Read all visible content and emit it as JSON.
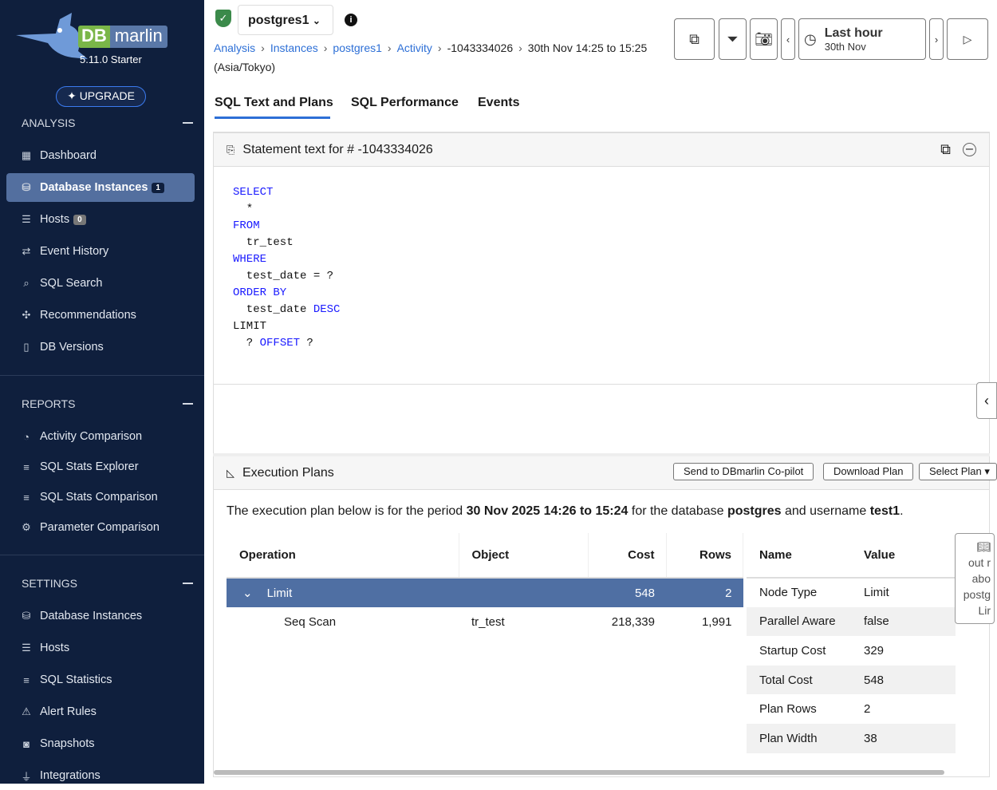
{
  "sidebar": {
    "brand_db": "DB",
    "brand_marlin": "marlin",
    "version": "5.11.0 Starter",
    "upgrade": "UPGRADE",
    "analysis": {
      "title": "ANALYSIS",
      "items": [
        {
          "label": "Dashboard",
          "icon": "grid-icon"
        },
        {
          "label": "Database Instances",
          "icon": "database-icon",
          "badge": "1",
          "active": true
        },
        {
          "label": "Hosts",
          "icon": "server-icon",
          "badge": "0"
        },
        {
          "label": "Event History",
          "icon": "arrows-icon"
        },
        {
          "label": "SQL Search",
          "icon": "search-icon"
        },
        {
          "label": "Recommendations",
          "icon": "puzzle-icon"
        },
        {
          "label": "DB Versions",
          "icon": "file-icon"
        }
      ]
    },
    "reports": {
      "title": "REPORTS",
      "items": [
        {
          "label": "Activity Comparison",
          "icon": "timer-icon"
        },
        {
          "label": "SQL Stats Explorer",
          "icon": "chart-icon"
        },
        {
          "label": "SQL Stats Comparison",
          "icon": "chart-icon"
        },
        {
          "label": "Parameter Comparison",
          "icon": "gear-icon"
        }
      ]
    },
    "settings": {
      "title": "SETTINGS",
      "items": [
        {
          "label": "Database Instances",
          "icon": "database-icon"
        },
        {
          "label": "Hosts",
          "icon": "server-icon"
        },
        {
          "label": "SQL Statistics",
          "icon": "chart-icon"
        },
        {
          "label": "Alert Rules",
          "icon": "warning-icon"
        },
        {
          "label": "Snapshots",
          "icon": "camera-icon"
        },
        {
          "label": "Integrations",
          "icon": "plug-icon"
        }
      ]
    }
  },
  "header": {
    "instance": "postgres1",
    "breadcrumb": [
      "Analysis",
      "Instances",
      "postgres1",
      "Activity"
    ],
    "crumb_id": "-1043334026",
    "crumb_range": "30th Nov 14:25 to 15:25 (Asia/Tokyo)",
    "time_label": "Last hour",
    "time_date": "30th Nov"
  },
  "tabs": [
    "SQL Text and Plans",
    "SQL Performance",
    "Events"
  ],
  "statement": {
    "title": "Statement text for # -1043334026"
  },
  "plans": {
    "title": "Execution Plans",
    "send": "Send to DBmarlin Co-pilot",
    "download": "Download Plan",
    "select": "Select Plan",
    "desc_pre": "The execution plan below is for the period ",
    "period": "30 Nov 2025 14:26 to 15:24",
    "desc_mid": " for the database ",
    "db": "postgres",
    "desc_mid2": " and username ",
    "user": "test1",
    "desc_end": ".",
    "columns": [
      "Operation",
      "Object",
      "Cost",
      "Rows"
    ],
    "rows": [
      {
        "op": "Limit",
        "object": "",
        "cost": "548",
        "rows": "2"
      },
      {
        "op": "Seq Scan",
        "object": "tr_test",
        "cost": "218,339",
        "rows": "1,991"
      }
    ],
    "kv_columns": [
      "Name",
      "Value"
    ],
    "kv": [
      [
        "Node Type",
        "Limit"
      ],
      [
        "Parallel Aware",
        "false"
      ],
      [
        "Startup Cost",
        "329"
      ],
      [
        "Total Cost",
        "548"
      ],
      [
        "Plan Rows",
        "2"
      ],
      [
        "Plan Width",
        "38"
      ]
    ],
    "tip": [
      "out r",
      "abo",
      "postg",
      "Lir"
    ]
  }
}
